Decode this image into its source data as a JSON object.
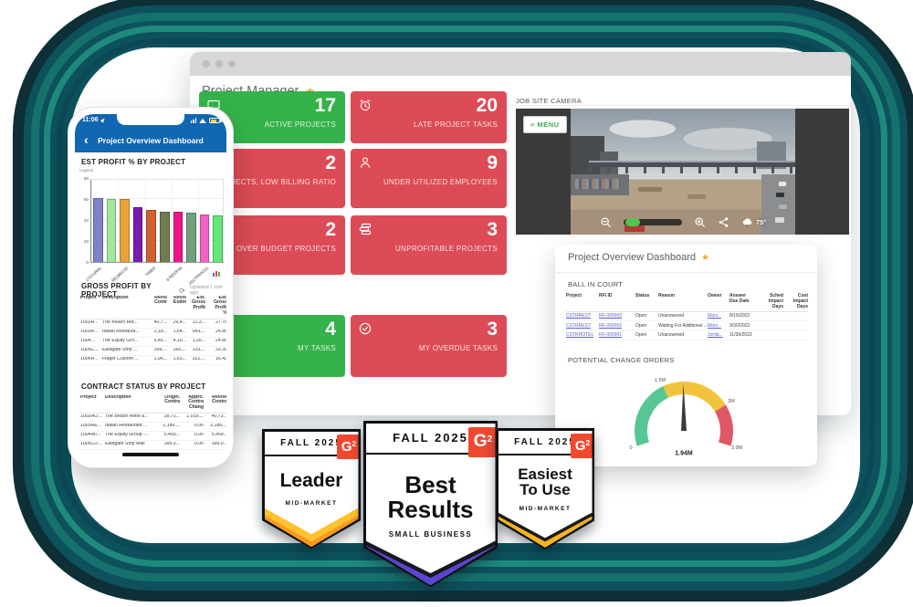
{
  "browser": {
    "title": "Project Manager",
    "favorite_star": "★",
    "colors": {
      "green": "#35b34a",
      "red": "#dc4b56"
    },
    "tiles": [
      {
        "value": "17",
        "label": "ACTIVE PROJECTS",
        "variant": "green",
        "icon": "monitor-icon"
      },
      {
        "value": "20",
        "label": "LATE PROJECT TASKS",
        "variant": "red",
        "icon": "alarm-clock-icon"
      },
      {
        "value": "2",
        "label": "PROJECTS, LOW BILLING RATIO",
        "variant": "red",
        "icon": null
      },
      {
        "value": "9",
        "label": "UNDER UTILIZED EMPLOYEES",
        "variant": "red",
        "icon": "person-icon"
      },
      {
        "value": "2",
        "label": "OVER BUDGET PROJECTS",
        "variant": "red",
        "icon": null
      },
      {
        "value": "3",
        "label": "UNPROFITABLE PROJECTS",
        "variant": "red",
        "icon": "stacked-cards-icon"
      },
      {
        "value": "4",
        "label": "MY TASKS",
        "variant": "green",
        "icon": null
      },
      {
        "value": "3",
        "label": "MY OVERDUE TASKS",
        "variant": "red",
        "icon": "check-circle-icon"
      }
    ],
    "camera": {
      "label": "JOB SITE CAMERA",
      "menu": "≡ MENU",
      "temperature": "75°"
    }
  },
  "overview_panel": {
    "title": "Project Overview Dashboard",
    "favorite_star": "★",
    "ball_in_court": {
      "heading": "BALL IN COURT",
      "columns": [
        "Project",
        "RFI ID",
        "Status",
        "Reason",
        "Owner",
        "Answer\nDue Date",
        "Sched\nImpact\nDays",
        "Cost\nImpact\nDays"
      ],
      "rows": [
        [
          "CSTRREST",
          "RF-000003",
          "Open",
          "Unanswered",
          "Marv...",
          "8/15/2022",
          "",
          ""
        ],
        [
          "CSTRREST",
          "RF-000002",
          "Open",
          "Waiting For Additional ...",
          "Marv...",
          "9/30/2022",
          "",
          ""
        ],
        [
          "CSTRHOTEL",
          "RF-000001",
          "Open",
          "Unanswered",
          "Jorda...",
          "11/30/2022",
          "",
          ""
        ]
      ]
    },
    "gauge": {
      "heading": "POTENTIAL CHANGE ORDERS",
      "value_label": "1.94M",
      "chart_data": {
        "type": "gauge",
        "min": 0,
        "max": 3.9,
        "value": 1.94,
        "start_angle": 198,
        "sweep": 216,
        "bands": [
          {
            "from": 0,
            "to": 1.5,
            "color": "#57c695"
          },
          {
            "from": 1.5,
            "to": 3.0,
            "color": "#f2c43d"
          },
          {
            "from": 3.0,
            "to": 3.9,
            "color": "#e05766"
          }
        ],
        "ticks": [
          {
            "value": 0,
            "label": "0"
          },
          {
            "value": 1.5,
            "label": "1.5M"
          },
          {
            "value": 3.0,
            "label": "3M"
          },
          {
            "value": 3.9,
            "label": "3.9M"
          }
        ],
        "needle_color": "#3a3a3a"
      }
    }
  },
  "phone": {
    "status": {
      "time": "11:06"
    },
    "nav_title": "Project Overview Dashboard",
    "est_profit": {
      "heading": "EST PROFIT % BY PROJECT",
      "legend_label": "Legend",
      "chart_data": {
        "type": "bar",
        "title": "EST PROFIT % BY PROJECT",
        "values": [
          61,
          60,
          60,
          52,
          50,
          48,
          48,
          47,
          45,
          44
        ],
        "colors": [
          "#7e82c8",
          "#a2e79e",
          "#e9a23a",
          "#7a1bad",
          "#d26030",
          "#6f7b51",
          "#ee1687",
          "#6fa17e",
          "#f263c4",
          "#63e878"
        ],
        "x_labels": [
          "172CURR1",
          "REUBEC02",
          "TM803",
          "67REDP06",
          "2017PROG01"
        ],
        "x_label_positions": [
          0,
          2,
          4,
          6,
          8
        ],
        "yticks": [
          0,
          20,
          40,
          60,
          80
        ],
        "ylim": [
          0,
          80
        ],
        "grid": true
      }
    },
    "gross_profit": {
      "heading": "GROSS PROFIT BY PROJECT",
      "refresh_icon": "⟳",
      "updated": "Updated 1 min ago",
      "columns": [
        "Project",
        "Description",
        "Revis\nContr",
        "Revis\nEstim",
        "Est.\nGross\nProfit",
        "Est.\nGross\nProfit\n%"
      ],
      "rows": [
        [
          "1002H...",
          "The Beach Hot...",
          "40,7...",
          "29,4...",
          "11,3...",
          "27.76"
        ],
        [
          "1003R...",
          "Italian Restaura...",
          "2,18...",
          "1,64...",
          "543,...",
          "24.85"
        ],
        [
          "1004...",
          "The Equity Gro...",
          "5,45...",
          "4,10...",
          "1,35...",
          "24.80"
        ],
        [
          "1005C...",
          "Eastgate Strip ...",
          "399,...",
          "265,...",
          "133,...",
          "33.39"
        ],
        [
          "1006H...",
          "Flager Custom ...",
          "1,96...",
          "1,63...",
          "322,...",
          "16.43"
        ]
      ]
    },
    "contract_status": {
      "heading": "CONTRACT STATUS BY PROJECT",
      "columns": [
        "Project",
        "Description",
        "Origin.\nContra",
        "Appro.\nContra\nChang",
        "Revise\nContra"
      ],
      "rows": [
        [
          "1002HO...",
          "The Beach Hotel a...",
          "39,71...",
          "1,019,...",
          "40,73..."
        ],
        [
          "1003RE...",
          "Italian Restaurant ...",
          "2,186,...",
          "0.00",
          "2,186,..."
        ],
        [
          "1004WI...",
          "The Equity Group -...",
          "5,459...",
          "0.00",
          "5,459..."
        ],
        [
          "1005CO...",
          "Eastgate Strip Mall",
          "399,0...",
          "0.00",
          "399,0..."
        ]
      ]
    }
  },
  "badges": [
    {
      "season": "FALL 2025",
      "title": "Leader",
      "subtitle": "MID-MARKET",
      "g2": "G2"
    },
    {
      "season": "FALL 2025",
      "title": "Best Results",
      "subtitle": "SMALL BUSINESS",
      "g2": "G2"
    },
    {
      "season": "FALL 2025",
      "title": "Easiest To Use",
      "subtitle": "MID-MARKET",
      "g2": "G2"
    }
  ]
}
